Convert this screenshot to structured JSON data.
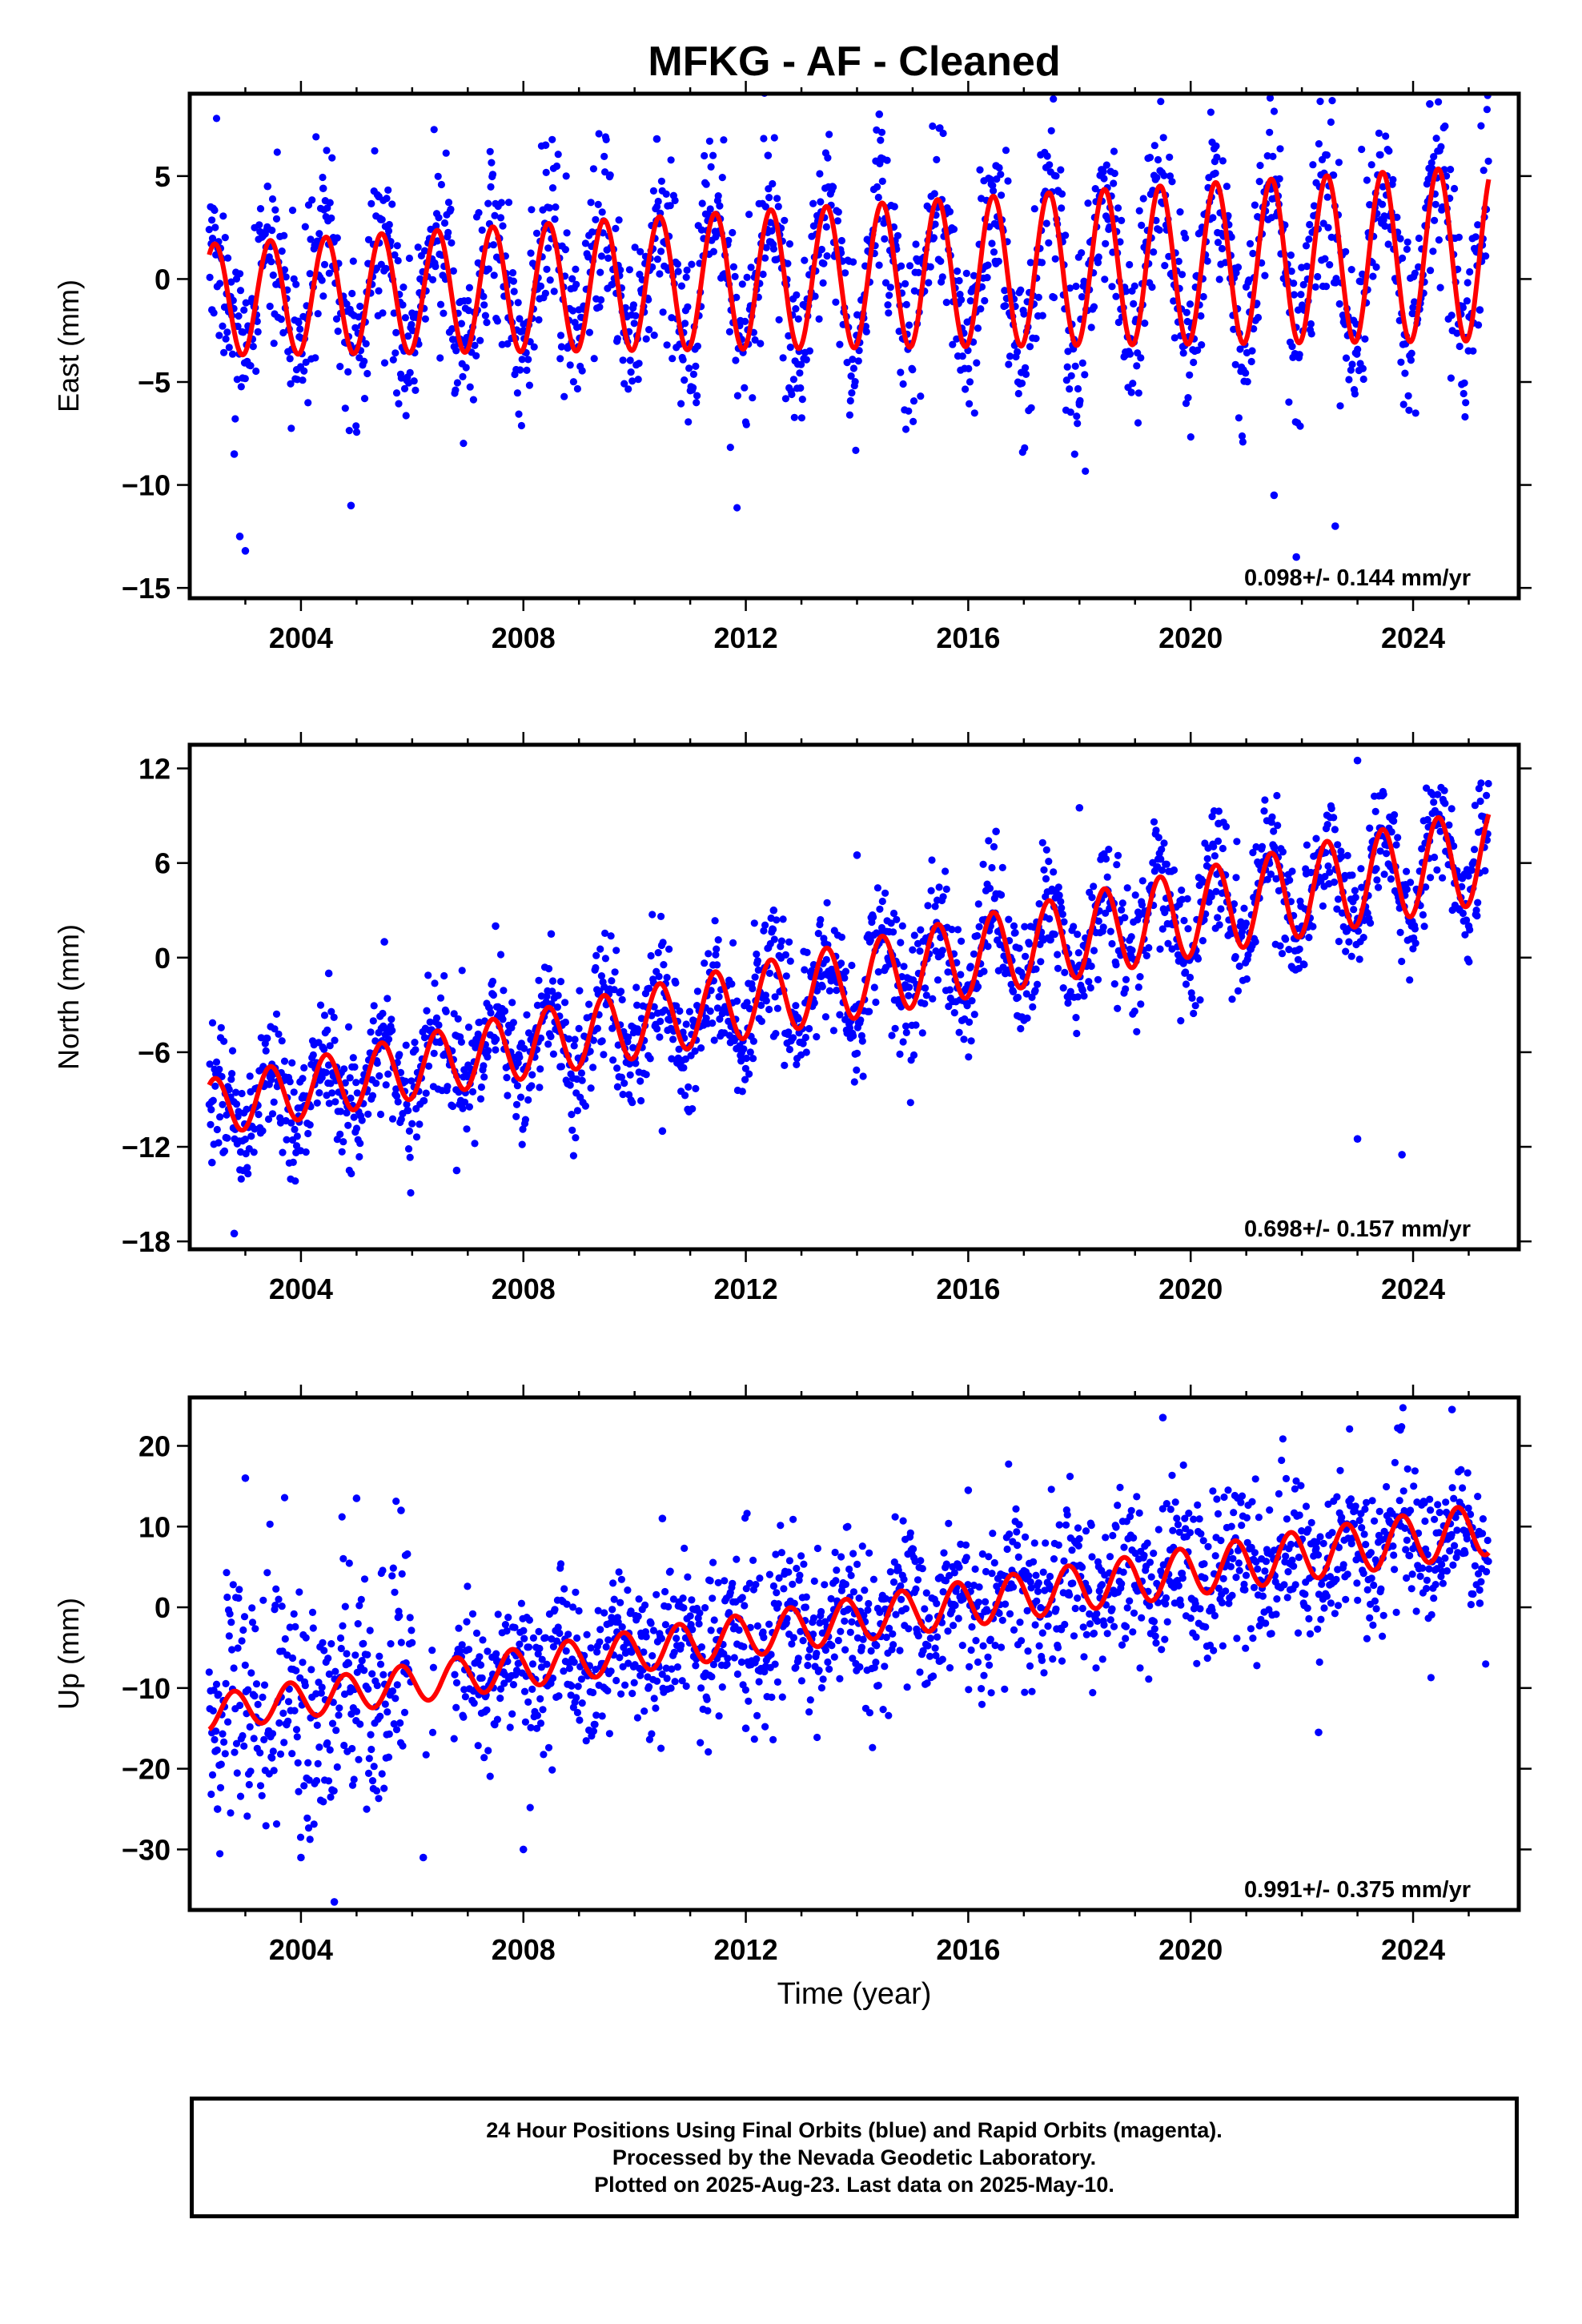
{
  "title": "MFKG  - AF - Cleaned",
  "xlabel": "Time (year)",
  "caption": {
    "line1": "24 Hour Positions Using Final Orbits (blue) and Rapid Orbits (magenta).",
    "line2": "Processed by the Nevada Geodetic Laboratory.",
    "line3": "Plotted on 2025-Aug-23. Last data on 2025-May-10."
  },
  "colors": {
    "observations": "#0000ff",
    "model": "#ff0000",
    "axes": "#000000"
  },
  "chart_data": [
    {
      "type": "scatter",
      "component": "East",
      "ylabel": "East (mm)",
      "velocity_label": "0.098+/- 0.144 mm/yr",
      "xlim": [
        2002.0,
        2025.9
      ],
      "ylim": [
        -15.5,
        9.0
      ],
      "xticks": [
        2004,
        2008,
        2012,
        2016,
        2020,
        2024
      ],
      "yticks": [
        5,
        0,
        -5,
        -10,
        -15
      ],
      "model": {
        "type": "line",
        "trend_start": -1.0,
        "trend_slope": 0.098,
        "annual_amplitude": 2.7,
        "amplitude_growth": 0.025,
        "phase_year": 0.45
      },
      "observation_samples": [
        {
          "x": 2002.4,
          "y": -1.5
        },
        {
          "x": 2002.8,
          "y": -8.5
        },
        {
          "x": 2002.9,
          "y": -12.5
        },
        {
          "x": 2003.0,
          "y": -13.2
        },
        {
          "x": 2003.4,
          "y": 4.5
        },
        {
          "x": 2004.4,
          "y": 4.4
        },
        {
          "x": 2004.9,
          "y": -11.0
        },
        {
          "x": 2005.4,
          "y": 4.0
        },
        {
          "x": 2008.4,
          "y": 6.5
        },
        {
          "x": 2010.4,
          "y": 6.8
        },
        {
          "x": 2012.4,
          "y": 6.0
        },
        {
          "x": 2014.4,
          "y": 8.0
        },
        {
          "x": 2016.5,
          "y": 5.5
        },
        {
          "x": 2018.0,
          "y": -6.0
        },
        {
          "x": 2021.5,
          "y": -10.5
        },
        {
          "x": 2021.9,
          "y": -13.5
        },
        {
          "x": 2022.6,
          "y": -12.0
        },
        {
          "x": 2024.3,
          "y": 8.5
        },
        {
          "x": 2025.2,
          "y": -1.5
        }
      ]
    },
    {
      "type": "scatter",
      "component": "North",
      "ylabel": "North (mm)",
      "velocity_label": "0.698+/- 0.157 mm/yr",
      "xlim": [
        2002.0,
        2025.9
      ],
      "ylim": [
        -18.5,
        13.5
      ],
      "xticks": [
        2004,
        2008,
        2012,
        2016,
        2020,
        2024
      ],
      "yticks": [
        12,
        6,
        0,
        -6,
        -12,
        -18
      ],
      "model": {
        "type": "line",
        "trend_start": -9.5,
        "trend_slope": 0.698,
        "annual_amplitude": 1.8,
        "amplitude_growth": 0.03,
        "phase_year": 0.45
      },
      "observation_samples": [
        {
          "x": 2002.4,
          "y": -13.0
        },
        {
          "x": 2002.8,
          "y": -17.5
        },
        {
          "x": 2003.5,
          "y": -7.0
        },
        {
          "x": 2004.5,
          "y": -1.0
        },
        {
          "x": 2005.5,
          "y": 1.0
        },
        {
          "x": 2006.8,
          "y": -13.5
        },
        {
          "x": 2007.5,
          "y": 2.0
        },
        {
          "x": 2008.5,
          "y": 1.5
        },
        {
          "x": 2010.5,
          "y": -11.0
        },
        {
          "x": 2012.5,
          "y": 3.0
        },
        {
          "x": 2014.0,
          "y": 6.5
        },
        {
          "x": 2016.5,
          "y": 8.0
        },
        {
          "x": 2018.0,
          "y": 9.5
        },
        {
          "x": 2020.5,
          "y": 8.5
        },
        {
          "x": 2021.5,
          "y": 7.0
        },
        {
          "x": 2023.0,
          "y": 12.5
        },
        {
          "x": 2023.0,
          "y": -11.5
        },
        {
          "x": 2023.8,
          "y": -12.5
        },
        {
          "x": 2025.0,
          "y": 2.0
        }
      ]
    },
    {
      "type": "scatter",
      "component": "Up",
      "ylabel": "Up (mm)",
      "velocity_label": "0.991+/- 0.375 mm/yr",
      "xlim": [
        2002.0,
        2025.9
      ],
      "ylim": [
        -37.5,
        26.0
      ],
      "xticks": [
        2004,
        2008,
        2012,
        2016,
        2020,
        2024
      ],
      "yticks": [
        20,
        10,
        0,
        -10,
        -20,
        -30
      ],
      "model": {
        "type": "line",
        "trend_start": -13.0,
        "trend_slope": 0.991,
        "annual_amplitude": 2.2,
        "amplitude_growth": 0.02,
        "phase_year": 0.8
      },
      "observation_samples": [
        {
          "x": 2002.5,
          "y": -25.0
        },
        {
          "x": 2003.0,
          "y": 16.0
        },
        {
          "x": 2004.0,
          "y": -31.0
        },
        {
          "x": 2004.6,
          "y": -36.5
        },
        {
          "x": 2005.0,
          "y": 13.5
        },
        {
          "x": 2005.8,
          "y": 12.0
        },
        {
          "x": 2006.2,
          "y": -31.0
        },
        {
          "x": 2008.0,
          "y": -30.0
        },
        {
          "x": 2010.5,
          "y": 11.0
        },
        {
          "x": 2012.0,
          "y": -15.0
        },
        {
          "x": 2016.0,
          "y": 14.5
        },
        {
          "x": 2019.5,
          "y": 23.5
        },
        {
          "x": 2022.3,
          "y": -15.5
        },
        {
          "x": 2024.7,
          "y": 24.5
        },
        {
          "x": 2025.2,
          "y": 0.5
        }
      ]
    }
  ]
}
